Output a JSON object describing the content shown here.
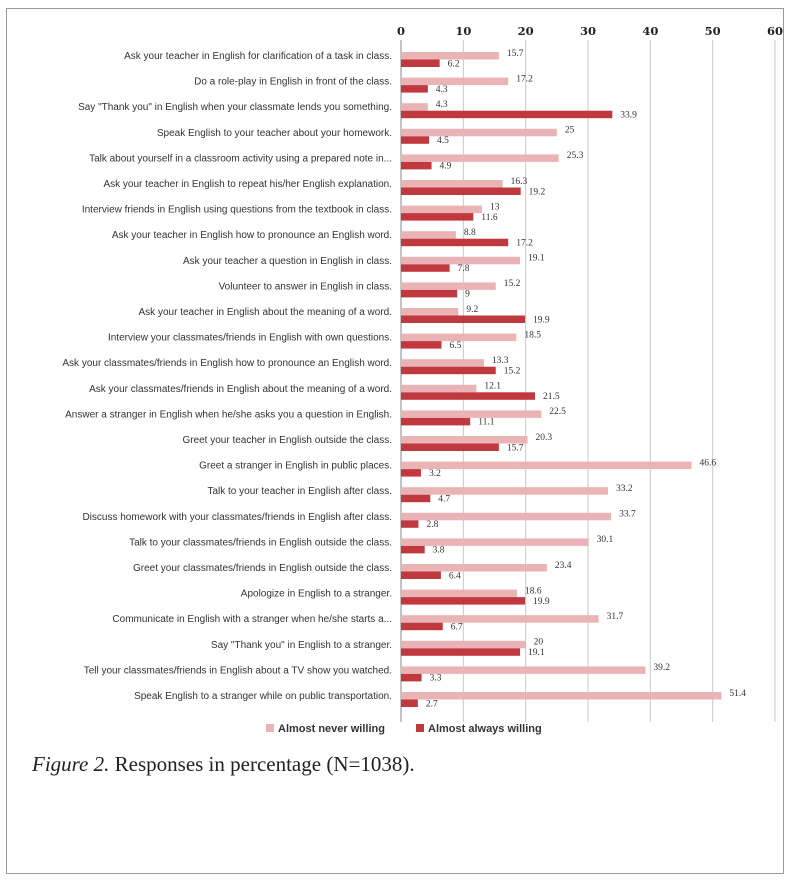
{
  "chart_data": {
    "type": "bar",
    "orientation": "horizontal",
    "categories": [
      "Ask your teacher in English for clarification of a task in class.",
      "Do a role-play in English in front of the class.",
      "Say \"Thank you\" in English when your classmate lends you something.",
      "Speak English to your teacher about your homework.",
      "Talk about yourself in a classroom activity using a prepared note in...",
      "Ask your teacher in English to repeat his/her English explanation.",
      "Interview friends in English using questions from the textbook in class.",
      "Ask your teacher in English how to pronounce an English word.",
      "Ask your teacher a question in English in class.",
      "Volunteer to answer in English in class.",
      "Ask your teacher in English about the meaning of a word.",
      "Interview your classmates/friends in English with own questions.",
      "Ask your classmates/friends in English how to pronounce an English word.",
      "Ask your classmates/friends in English about the meaning of a word.",
      "Answer a stranger in English when he/she asks you a question in English.",
      "Greet your teacher in English outside the class.",
      "Greet a stranger in English in public places.",
      "Talk to your teacher in English after class.",
      "Discuss homework with your classmates/friends in English after class.",
      "Talk to your classmates/friends in English outside the class.",
      "Greet your classmates/friends in English outside the class.",
      "Apologize in English to a stranger.",
      "Communicate in English with a stranger when he/she starts a...",
      "Say \"Thank you\" in English to a stranger.",
      "Tell your classmates/friends in English about a TV show you watched.",
      "Speak English to a stranger while on public transportation."
    ],
    "series": [
      {
        "name": "Almost never willing",
        "color": "#eab4b6",
        "values": [
          15.7,
          17.2,
          4.3,
          25,
          25.3,
          16.3,
          13,
          8.8,
          19.1,
          15.2,
          9.2,
          18.5,
          13.3,
          12.1,
          22.5,
          20.3,
          46.6,
          33.2,
          33.7,
          30.1,
          23.4,
          18.6,
          31.7,
          20,
          39.2,
          51.4
        ]
      },
      {
        "name": "Almost always willing",
        "color": "#c0393f",
        "values": [
          6.2,
          4.3,
          33.9,
          4.5,
          4.9,
          19.2,
          11.6,
          17.2,
          7.8,
          9,
          19.9,
          6.5,
          15.2,
          21.5,
          11.1,
          15.7,
          3.2,
          4.7,
          2.8,
          3.8,
          6.4,
          19.9,
          6.7,
          19.1,
          3.3,
          2.7
        ]
      }
    ],
    "xlim": [
      0,
      60
    ],
    "xticks": [
      0,
      10,
      20,
      30,
      40,
      50,
      60
    ],
    "grid": true,
    "legend_position": "bottom"
  },
  "caption": {
    "label": "Figure 2.",
    "text": " Responses in percentage (N=1038)."
  }
}
